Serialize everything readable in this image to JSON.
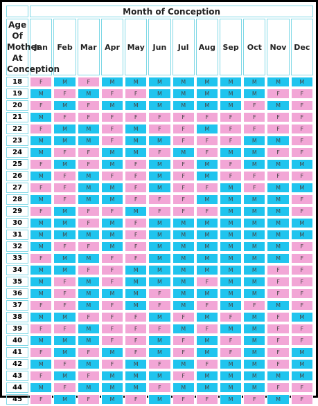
{
  "header": {
    "corner": "Age Of Mother At Conception",
    "title": "Month of Conception",
    "months": [
      "Jan",
      "Feb",
      "Mar",
      "Apr",
      "May",
      "Jun",
      "Jul",
      "Aug",
      "Sep",
      "Oct",
      "Nov",
      "Dec"
    ]
  },
  "colors": {
    "F": "#f2a6d6",
    "M": "#20c4ee"
  },
  "rows": [
    {
      "age": "18",
      "cells": [
        "F",
        "M",
        "F",
        "M",
        "M",
        "M",
        "M",
        "M",
        "M",
        "M",
        "M",
        "M"
      ]
    },
    {
      "age": "19",
      "cells": [
        "M",
        "F",
        "M",
        "F",
        "F",
        "M",
        "M",
        "M",
        "M",
        "M",
        "F",
        "F"
      ]
    },
    {
      "age": "20",
      "cells": [
        "F",
        "M",
        "F",
        "M",
        "M",
        "M",
        "M",
        "M",
        "M",
        "F",
        "M",
        "F"
      ]
    },
    {
      "age": "21",
      "cells": [
        "M",
        "F",
        "F",
        "F",
        "F",
        "F",
        "F",
        "F",
        "F",
        "F",
        "F",
        "F"
      ]
    },
    {
      "age": "22",
      "cells": [
        "F",
        "M",
        "M",
        "F",
        "M",
        "F",
        "F",
        "M",
        "F",
        "F",
        "F",
        "F"
      ]
    },
    {
      "age": "23",
      "cells": [
        "M",
        "M",
        "M",
        "F",
        "M",
        "M",
        "F",
        "F",
        "F",
        "M",
        "M",
        "F"
      ]
    },
    {
      "age": "24",
      "cells": [
        "M",
        "F",
        "F",
        "M",
        "M",
        "F",
        "M",
        "F",
        "M",
        "M",
        "F",
        "F"
      ]
    },
    {
      "age": "25",
      "cells": [
        "F",
        "M",
        "F",
        "M",
        "F",
        "M",
        "F",
        "M",
        "F",
        "M",
        "M",
        "M"
      ]
    },
    {
      "age": "26",
      "cells": [
        "M",
        "F",
        "M",
        "F",
        "F",
        "M",
        "F",
        "M",
        "F",
        "F",
        "F",
        "F"
      ]
    },
    {
      "age": "27",
      "cells": [
        "F",
        "F",
        "M",
        "M",
        "F",
        "M",
        "F",
        "F",
        "M",
        "F",
        "M",
        "M"
      ]
    },
    {
      "age": "28",
      "cells": [
        "M",
        "F",
        "M",
        "M",
        "F",
        "F",
        "F",
        "M",
        "M",
        "M",
        "M",
        "F"
      ]
    },
    {
      "age": "29",
      "cells": [
        "F",
        "M",
        "F",
        "F",
        "M",
        "F",
        "F",
        "F",
        "M",
        "M",
        "M",
        "F"
      ]
    },
    {
      "age": "30",
      "cells": [
        "M",
        "M",
        "F",
        "M",
        "F",
        "M",
        "M",
        "M",
        "M",
        "M",
        "M",
        "M"
      ]
    },
    {
      "age": "31",
      "cells": [
        "M",
        "M",
        "M",
        "M",
        "F",
        "M",
        "M",
        "M",
        "M",
        "M",
        "M",
        "M"
      ]
    },
    {
      "age": "32",
      "cells": [
        "M",
        "F",
        "F",
        "M",
        "F",
        "M",
        "M",
        "M",
        "M",
        "M",
        "M",
        "F"
      ]
    },
    {
      "age": "33",
      "cells": [
        "F",
        "M",
        "M",
        "F",
        "F",
        "M",
        "M",
        "M",
        "M",
        "M",
        "M",
        "F"
      ]
    },
    {
      "age": "34",
      "cells": [
        "M",
        "M",
        "F",
        "F",
        "M",
        "M",
        "M",
        "M",
        "M",
        "M",
        "F",
        "F"
      ]
    },
    {
      "age": "35",
      "cells": [
        "M",
        "F",
        "M",
        "F",
        "M",
        "M",
        "M",
        "F",
        "M",
        "M",
        "F",
        "F"
      ]
    },
    {
      "age": "36",
      "cells": [
        "M",
        "F",
        "M",
        "M",
        "M",
        "F",
        "M",
        "M",
        "M",
        "M",
        "F",
        "F"
      ]
    },
    {
      "age": "37",
      "cells": [
        "F",
        "F",
        "M",
        "F",
        "M",
        "F",
        "M",
        "F",
        "M",
        "F",
        "M",
        "F"
      ]
    },
    {
      "age": "38",
      "cells": [
        "M",
        "M",
        "F",
        "F",
        "F",
        "M",
        "F",
        "M",
        "F",
        "M",
        "F",
        "M"
      ]
    },
    {
      "age": "39",
      "cells": [
        "F",
        "F",
        "M",
        "F",
        "F",
        "F",
        "M",
        "F",
        "M",
        "M",
        "F",
        "F"
      ]
    },
    {
      "age": "40",
      "cells": [
        "M",
        "M",
        "M",
        "F",
        "F",
        "M",
        "F",
        "M",
        "F",
        "M",
        "F",
        "F"
      ]
    },
    {
      "age": "41",
      "cells": [
        "F",
        "M",
        "F",
        "M",
        "F",
        "M",
        "F",
        "M",
        "F",
        "M",
        "F",
        "M"
      ]
    },
    {
      "age": "42",
      "cells": [
        "M",
        "F",
        "M",
        "F",
        "M",
        "F",
        "M",
        "F",
        "M",
        "M",
        "F",
        "M"
      ]
    },
    {
      "age": "43",
      "cells": [
        "F",
        "M",
        "F",
        "M",
        "M",
        "M",
        "F",
        "M",
        "M",
        "M",
        "M",
        "M"
      ]
    },
    {
      "age": "44",
      "cells": [
        "M",
        "F",
        "M",
        "M",
        "M",
        "F",
        "M",
        "M",
        "M",
        "M",
        "F",
        "F"
      ]
    },
    {
      "age": "45",
      "cells": [
        "F",
        "M",
        "F",
        "M",
        "F",
        "M",
        "F",
        "F",
        "M",
        "F",
        "M",
        "F"
      ]
    }
  ]
}
